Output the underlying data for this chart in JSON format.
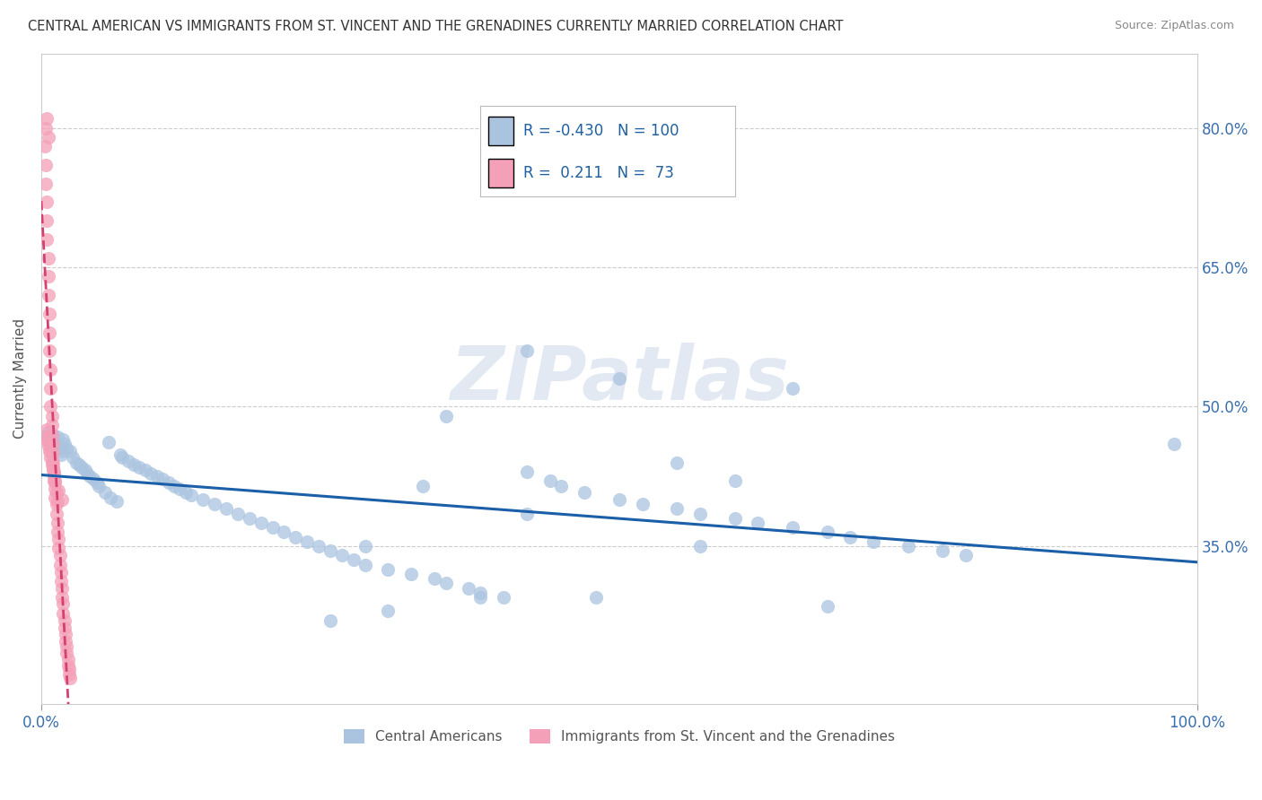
{
  "title": "CENTRAL AMERICAN VS IMMIGRANTS FROM ST. VINCENT AND THE GRENADINES CURRENTLY MARRIED CORRELATION CHART",
  "source": "Source: ZipAtlas.com",
  "ylabel": "Currently Married",
  "xlim": [
    0.0,
    1.0
  ],
  "ylim": [
    0.18,
    0.88
  ],
  "yticks": [
    0.35,
    0.5,
    0.65,
    0.8
  ],
  "ytick_labels": [
    "35.0%",
    "50.0%",
    "65.0%",
    "80.0%"
  ],
  "xticks": [
    0.0,
    1.0
  ],
  "xtick_labels": [
    "0.0%",
    "100.0%"
  ],
  "legend_labels": [
    "Central Americans",
    "Immigrants from St. Vincent and the Grenadines"
  ],
  "R_blue": -0.43,
  "N_blue": 100,
  "R_pink": 0.211,
  "N_pink": 73,
  "blue_color": "#aac4e0",
  "pink_color": "#f4a0b8",
  "blue_line_color": "#1a5fa8",
  "pink_line_color": "#d44070",
  "background_color": "#ffffff",
  "watermark": "ZIPatlas",
  "blue_scatter_x": [
    0.004,
    0.006,
    0.008,
    0.009,
    0.01,
    0.011,
    0.012,
    0.013,
    0.014,
    0.015,
    0.016,
    0.017,
    0.018,
    0.019,
    0.02,
    0.022,
    0.025,
    0.027,
    0.03,
    0.033,
    0.035,
    0.038,
    0.04,
    0.042,
    0.045,
    0.048,
    0.05,
    0.055,
    0.058,
    0.06,
    0.065,
    0.068,
    0.07,
    0.075,
    0.08,
    0.085,
    0.09,
    0.095,
    0.1,
    0.105,
    0.11,
    0.115,
    0.12,
    0.125,
    0.13,
    0.14,
    0.15,
    0.16,
    0.17,
    0.18,
    0.19,
    0.2,
    0.21,
    0.22,
    0.23,
    0.24,
    0.25,
    0.26,
    0.27,
    0.28,
    0.3,
    0.32,
    0.34,
    0.35,
    0.37,
    0.38,
    0.4,
    0.42,
    0.44,
    0.45,
    0.47,
    0.5,
    0.52,
    0.55,
    0.57,
    0.6,
    0.62,
    0.65,
    0.68,
    0.7,
    0.72,
    0.75,
    0.78,
    0.8,
    0.35,
    0.42,
    0.5,
    0.28,
    0.55,
    0.65,
    0.38,
    0.3,
    0.6,
    0.42,
    0.48,
    0.33,
    0.25,
    0.57,
    0.68,
    0.98
  ],
  "blue_scatter_y": [
    0.468,
    0.472,
    0.465,
    0.46,
    0.47,
    0.462,
    0.458,
    0.455,
    0.468,
    0.46,
    0.455,
    0.448,
    0.452,
    0.465,
    0.46,
    0.455,
    0.452,
    0.445,
    0.44,
    0.438,
    0.435,
    0.432,
    0.428,
    0.425,
    0.422,
    0.418,
    0.415,
    0.408,
    0.462,
    0.402,
    0.398,
    0.448,
    0.445,
    0.442,
    0.438,
    0.435,
    0.432,
    0.428,
    0.425,
    0.422,
    0.418,
    0.415,
    0.412,
    0.408,
    0.405,
    0.4,
    0.395,
    0.39,
    0.385,
    0.38,
    0.375,
    0.37,
    0.365,
    0.36,
    0.355,
    0.35,
    0.345,
    0.34,
    0.335,
    0.33,
    0.325,
    0.32,
    0.315,
    0.31,
    0.305,
    0.3,
    0.295,
    0.43,
    0.42,
    0.415,
    0.408,
    0.4,
    0.395,
    0.39,
    0.385,
    0.38,
    0.375,
    0.37,
    0.365,
    0.36,
    0.355,
    0.35,
    0.345,
    0.34,
    0.49,
    0.56,
    0.53,
    0.35,
    0.44,
    0.52,
    0.295,
    0.28,
    0.42,
    0.385,
    0.295,
    0.415,
    0.27,
    0.35,
    0.285,
    0.46
  ],
  "pink_scatter_x": [
    0.003,
    0.004,
    0.004,
    0.005,
    0.005,
    0.005,
    0.006,
    0.006,
    0.006,
    0.007,
    0.007,
    0.007,
    0.008,
    0.008,
    0.008,
    0.009,
    0.009,
    0.009,
    0.01,
    0.01,
    0.01,
    0.011,
    0.011,
    0.012,
    0.012,
    0.013,
    0.013,
    0.014,
    0.014,
    0.015,
    0.015,
    0.016,
    0.016,
    0.017,
    0.017,
    0.018,
    0.018,
    0.019,
    0.019,
    0.02,
    0.02,
    0.021,
    0.021,
    0.022,
    0.022,
    0.023,
    0.023,
    0.024,
    0.024,
    0.025,
    0.005,
    0.006,
    0.007,
    0.008,
    0.009,
    0.01,
    0.011,
    0.012,
    0.013,
    0.014,
    0.005,
    0.006,
    0.007,
    0.008,
    0.009,
    0.01,
    0.011,
    0.012,
    0.015,
    0.018,
    0.004,
    0.005,
    0.006
  ],
  "pink_scatter_y": [
    0.78,
    0.76,
    0.74,
    0.72,
    0.7,
    0.68,
    0.66,
    0.64,
    0.62,
    0.6,
    0.58,
    0.56,
    0.54,
    0.52,
    0.5,
    0.49,
    0.48,
    0.47,
    0.46,
    0.45,
    0.44,
    0.43,
    0.42,
    0.412,
    0.402,
    0.395,
    0.385,
    0.375,
    0.365,
    0.358,
    0.348,
    0.34,
    0.33,
    0.322,
    0.312,
    0.305,
    0.295,
    0.288,
    0.278,
    0.27,
    0.262,
    0.255,
    0.248,
    0.242,
    0.235,
    0.228,
    0.222,
    0.218,
    0.212,
    0.208,
    0.465,
    0.458,
    0.452,
    0.445,
    0.438,
    0.432,
    0.425,
    0.418,
    0.408,
    0.398,
    0.475,
    0.468,
    0.46,
    0.452,
    0.442,
    0.435,
    0.428,
    0.42,
    0.41,
    0.4,
    0.8,
    0.81,
    0.79
  ]
}
